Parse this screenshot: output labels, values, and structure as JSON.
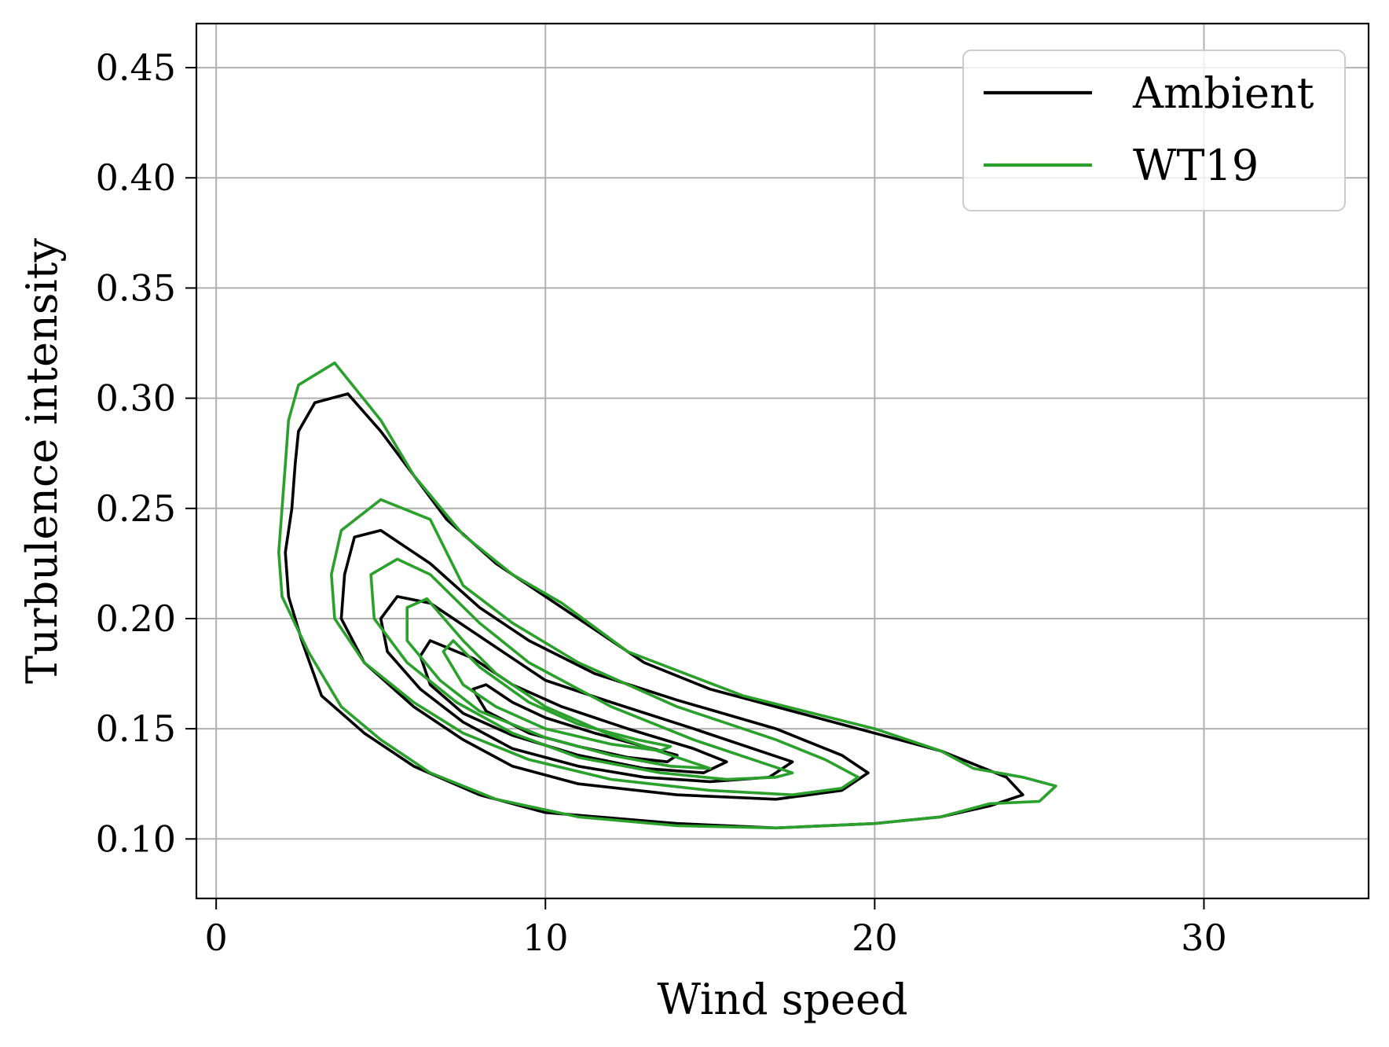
{
  "chart_data": {
    "type": "contour",
    "title": "",
    "xlabel": "Wind speed",
    "ylabel": "Turbulence intensity",
    "xlim": [
      -0.6,
      35
    ],
    "ylim": [
      0.073,
      0.47
    ],
    "x_ticks": [
      0,
      10,
      20,
      30
    ],
    "x_tick_labels": [
      "0",
      "10",
      "20",
      "30"
    ],
    "y_ticks": [
      0.1,
      0.15,
      0.2,
      0.25,
      0.3,
      0.35,
      0.4,
      0.45
    ],
    "y_tick_labels": [
      "0.10",
      "0.15",
      "0.20",
      "0.25",
      "0.30",
      "0.35",
      "0.40",
      "0.45"
    ],
    "grid": true,
    "legend_position": "top-right",
    "series": [
      {
        "name": "Ambient",
        "color": "#000000",
        "contours": [
          [
            [
              24.5,
              0.12
            ],
            [
              24.0,
              0.128
            ],
            [
              22.0,
              0.14
            ],
            [
              19.0,
              0.152
            ],
            [
              15.0,
              0.168
            ],
            [
              13.0,
              0.18
            ],
            [
              10.5,
              0.205
            ],
            [
              8.5,
              0.225
            ],
            [
              7.0,
              0.245
            ],
            [
              6.0,
              0.265
            ],
            [
              5.0,
              0.285
            ],
            [
              4.0,
              0.302
            ],
            [
              3.0,
              0.298
            ],
            [
              2.5,
              0.285
            ],
            [
              2.4,
              0.27
            ],
            [
              2.3,
              0.25
            ],
            [
              2.1,
              0.23
            ],
            [
              2.2,
              0.21
            ],
            [
              2.6,
              0.19
            ],
            [
              3.2,
              0.165
            ],
            [
              4.5,
              0.148
            ],
            [
              6.0,
              0.133
            ],
            [
              8.0,
              0.12
            ],
            [
              10.0,
              0.112
            ],
            [
              14.0,
              0.107
            ],
            [
              17.0,
              0.105
            ],
            [
              20.0,
              0.107
            ],
            [
              22.0,
              0.11
            ],
            [
              23.5,
              0.115
            ],
            [
              24.5,
              0.12
            ]
          ],
          [
            [
              19.8,
              0.13
            ],
            [
              19.0,
              0.138
            ],
            [
              17.0,
              0.15
            ],
            [
              14.0,
              0.163
            ],
            [
              11.5,
              0.175
            ],
            [
              9.5,
              0.19
            ],
            [
              8.0,
              0.205
            ],
            [
              6.5,
              0.225
            ],
            [
              5.0,
              0.24
            ],
            [
              4.2,
              0.237
            ],
            [
              3.9,
              0.22
            ],
            [
              3.8,
              0.2
            ],
            [
              4.5,
              0.18
            ],
            [
              6.0,
              0.16
            ],
            [
              7.5,
              0.145
            ],
            [
              9.0,
              0.133
            ],
            [
              11.0,
              0.125
            ],
            [
              14.0,
              0.12
            ],
            [
              17.0,
              0.118
            ],
            [
              19.0,
              0.122
            ],
            [
              19.8,
              0.13
            ]
          ],
          [
            [
              17.5,
              0.135
            ],
            [
              16.5,
              0.14
            ],
            [
              14.5,
              0.15
            ],
            [
              12.0,
              0.162
            ],
            [
              10.0,
              0.172
            ],
            [
              8.0,
              0.192
            ],
            [
              6.5,
              0.207
            ],
            [
              5.5,
              0.21
            ],
            [
              5.0,
              0.2
            ],
            [
              5.2,
              0.185
            ],
            [
              6.2,
              0.168
            ],
            [
              7.5,
              0.153
            ],
            [
              9.0,
              0.141
            ],
            [
              11.0,
              0.133
            ],
            [
              13.0,
              0.128
            ],
            [
              15.0,
              0.126
            ],
            [
              16.8,
              0.128
            ],
            [
              17.5,
              0.135
            ]
          ],
          [
            [
              15.5,
              0.135
            ],
            [
              14.5,
              0.141
            ],
            [
              12.5,
              0.15
            ],
            [
              10.5,
              0.16
            ],
            [
              9.0,
              0.17
            ],
            [
              7.8,
              0.182
            ],
            [
              6.5,
              0.19
            ],
            [
              6.2,
              0.183
            ],
            [
              6.5,
              0.17
            ],
            [
              7.5,
              0.157
            ],
            [
              9.0,
              0.147
            ],
            [
              11.0,
              0.138
            ],
            [
              13.0,
              0.132
            ],
            [
              14.8,
              0.13
            ],
            [
              15.5,
              0.135
            ]
          ],
          [
            [
              14.0,
              0.138
            ],
            [
              13.0,
              0.142
            ],
            [
              11.5,
              0.148
            ],
            [
              10.0,
              0.155
            ],
            [
              9.0,
              0.162
            ],
            [
              8.2,
              0.17
            ],
            [
              7.8,
              0.168
            ],
            [
              8.2,
              0.158
            ],
            [
              9.5,
              0.148
            ],
            [
              11.0,
              0.142
            ],
            [
              12.5,
              0.137
            ],
            [
              13.7,
              0.135
            ],
            [
              14.0,
              0.138
            ]
          ]
        ]
      },
      {
        "name": "WT19",
        "color": "#2ca02c",
        "contours": [
          [
            [
              25.5,
              0.124
            ],
            [
              24.5,
              0.128
            ],
            [
              23.0,
              0.132
            ],
            [
              22.0,
              0.14
            ],
            [
              20.0,
              0.15
            ],
            [
              16.0,
              0.165
            ],
            [
              12.5,
              0.185
            ],
            [
              10.5,
              0.207
            ],
            [
              9.0,
              0.22
            ],
            [
              7.5,
              0.238
            ],
            [
              6.0,
              0.265
            ],
            [
              5.0,
              0.29
            ],
            [
              3.6,
              0.316
            ],
            [
              2.5,
              0.306
            ],
            [
              2.2,
              0.29
            ],
            [
              2.1,
              0.27
            ],
            [
              2.0,
              0.25
            ],
            [
              1.9,
              0.23
            ],
            [
              2.0,
              0.21
            ],
            [
              2.8,
              0.185
            ],
            [
              3.8,
              0.16
            ],
            [
              5.0,
              0.145
            ],
            [
              6.5,
              0.13
            ],
            [
              8.5,
              0.118
            ],
            [
              11.0,
              0.11
            ],
            [
              14.0,
              0.106
            ],
            [
              17.0,
              0.105
            ],
            [
              20.0,
              0.107
            ],
            [
              22.0,
              0.11
            ],
            [
              23.5,
              0.116
            ],
            [
              25.0,
              0.117
            ],
            [
              25.5,
              0.124
            ]
          ],
          [
            [
              19.5,
              0.128
            ],
            [
              18.5,
              0.136
            ],
            [
              17.0,
              0.145
            ],
            [
              14.0,
              0.16
            ],
            [
              11.0,
              0.18
            ],
            [
              9.0,
              0.198
            ],
            [
              7.5,
              0.215
            ],
            [
              6.5,
              0.245
            ],
            [
              5.0,
              0.254
            ],
            [
              3.8,
              0.24
            ],
            [
              3.5,
              0.22
            ],
            [
              3.6,
              0.2
            ],
            [
              4.5,
              0.18
            ],
            [
              6.0,
              0.162
            ],
            [
              7.5,
              0.148
            ],
            [
              9.5,
              0.136
            ],
            [
              12.0,
              0.127
            ],
            [
              15.0,
              0.122
            ],
            [
              17.5,
              0.12
            ],
            [
              19.0,
              0.123
            ],
            [
              19.5,
              0.128
            ]
          ],
          [
            [
              17.5,
              0.13
            ],
            [
              16.5,
              0.135
            ],
            [
              14.5,
              0.145
            ],
            [
              12.0,
              0.16
            ],
            [
              9.5,
              0.18
            ],
            [
              8.0,
              0.198
            ],
            [
              6.5,
              0.22
            ],
            [
              5.5,
              0.227
            ],
            [
              4.7,
              0.22
            ],
            [
              4.8,
              0.2
            ],
            [
              5.8,
              0.18
            ],
            [
              7.3,
              0.162
            ],
            [
              9.0,
              0.148
            ],
            [
              11.0,
              0.137
            ],
            [
              13.5,
              0.13
            ],
            [
              15.5,
              0.127
            ],
            [
              17.0,
              0.128
            ],
            [
              17.5,
              0.13
            ]
          ],
          [
            [
              15.0,
              0.132
            ],
            [
              14.0,
              0.137
            ],
            [
              12.0,
              0.147
            ],
            [
              10.0,
              0.16
            ],
            [
              8.5,
              0.175
            ],
            [
              7.5,
              0.19
            ],
            [
              6.4,
              0.209
            ],
            [
              5.8,
              0.205
            ],
            [
              5.8,
              0.19
            ],
            [
              6.8,
              0.172
            ],
            [
              8.0,
              0.158
            ],
            [
              10.0,
              0.146
            ],
            [
              12.0,
              0.138
            ],
            [
              13.8,
              0.133
            ],
            [
              15.0,
              0.132
            ]
          ],
          [
            [
              13.8,
              0.142
            ],
            [
              12.8,
              0.145
            ],
            [
              11.0,
              0.152
            ],
            [
              9.5,
              0.162
            ],
            [
              8.0,
              0.178
            ],
            [
              7.2,
              0.19
            ],
            [
              6.9,
              0.185
            ],
            [
              7.5,
              0.17
            ],
            [
              8.5,
              0.16
            ],
            [
              10.0,
              0.15
            ],
            [
              12.0,
              0.143
            ],
            [
              13.5,
              0.14
            ],
            [
              13.8,
              0.142
            ]
          ]
        ]
      }
    ]
  }
}
